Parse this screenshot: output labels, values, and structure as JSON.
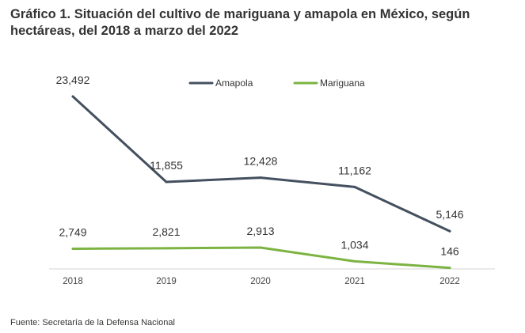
{
  "title": "Gráfico 1. Situación del cultivo de mariguana y amapola en México, según hectáreas, del 2018 a marzo del 2022",
  "source": "Fuente: Secretaría de la Defensa Nacional",
  "chart_data": {
    "type": "line",
    "title": "Gráfico 1. Situación del cultivo de mariguana y amapola en México, según hectáreas, del 2018 a marzo del 2022",
    "xlabel": "",
    "ylabel": "",
    "categories": [
      "2018",
      "2019",
      "2020",
      "2021",
      "2022"
    ],
    "series": [
      {
        "name": "Amapola",
        "color": "#44505f",
        "values": [
          23492,
          11855,
          12428,
          11162,
          5146
        ],
        "labels": [
          "23,492",
          "11,855",
          "12,428",
          "11,162",
          "5,146"
        ]
      },
      {
        "name": "Mariguana",
        "color": "#7cb342",
        "values": [
          2749,
          2821,
          2913,
          1034,
          146
        ],
        "labels": [
          "2,749",
          "2,821",
          "2,913",
          "1,034",
          "146"
        ]
      }
    ],
    "ylim": [
      0,
      25000
    ],
    "grid": false,
    "legend": "top-right"
  }
}
